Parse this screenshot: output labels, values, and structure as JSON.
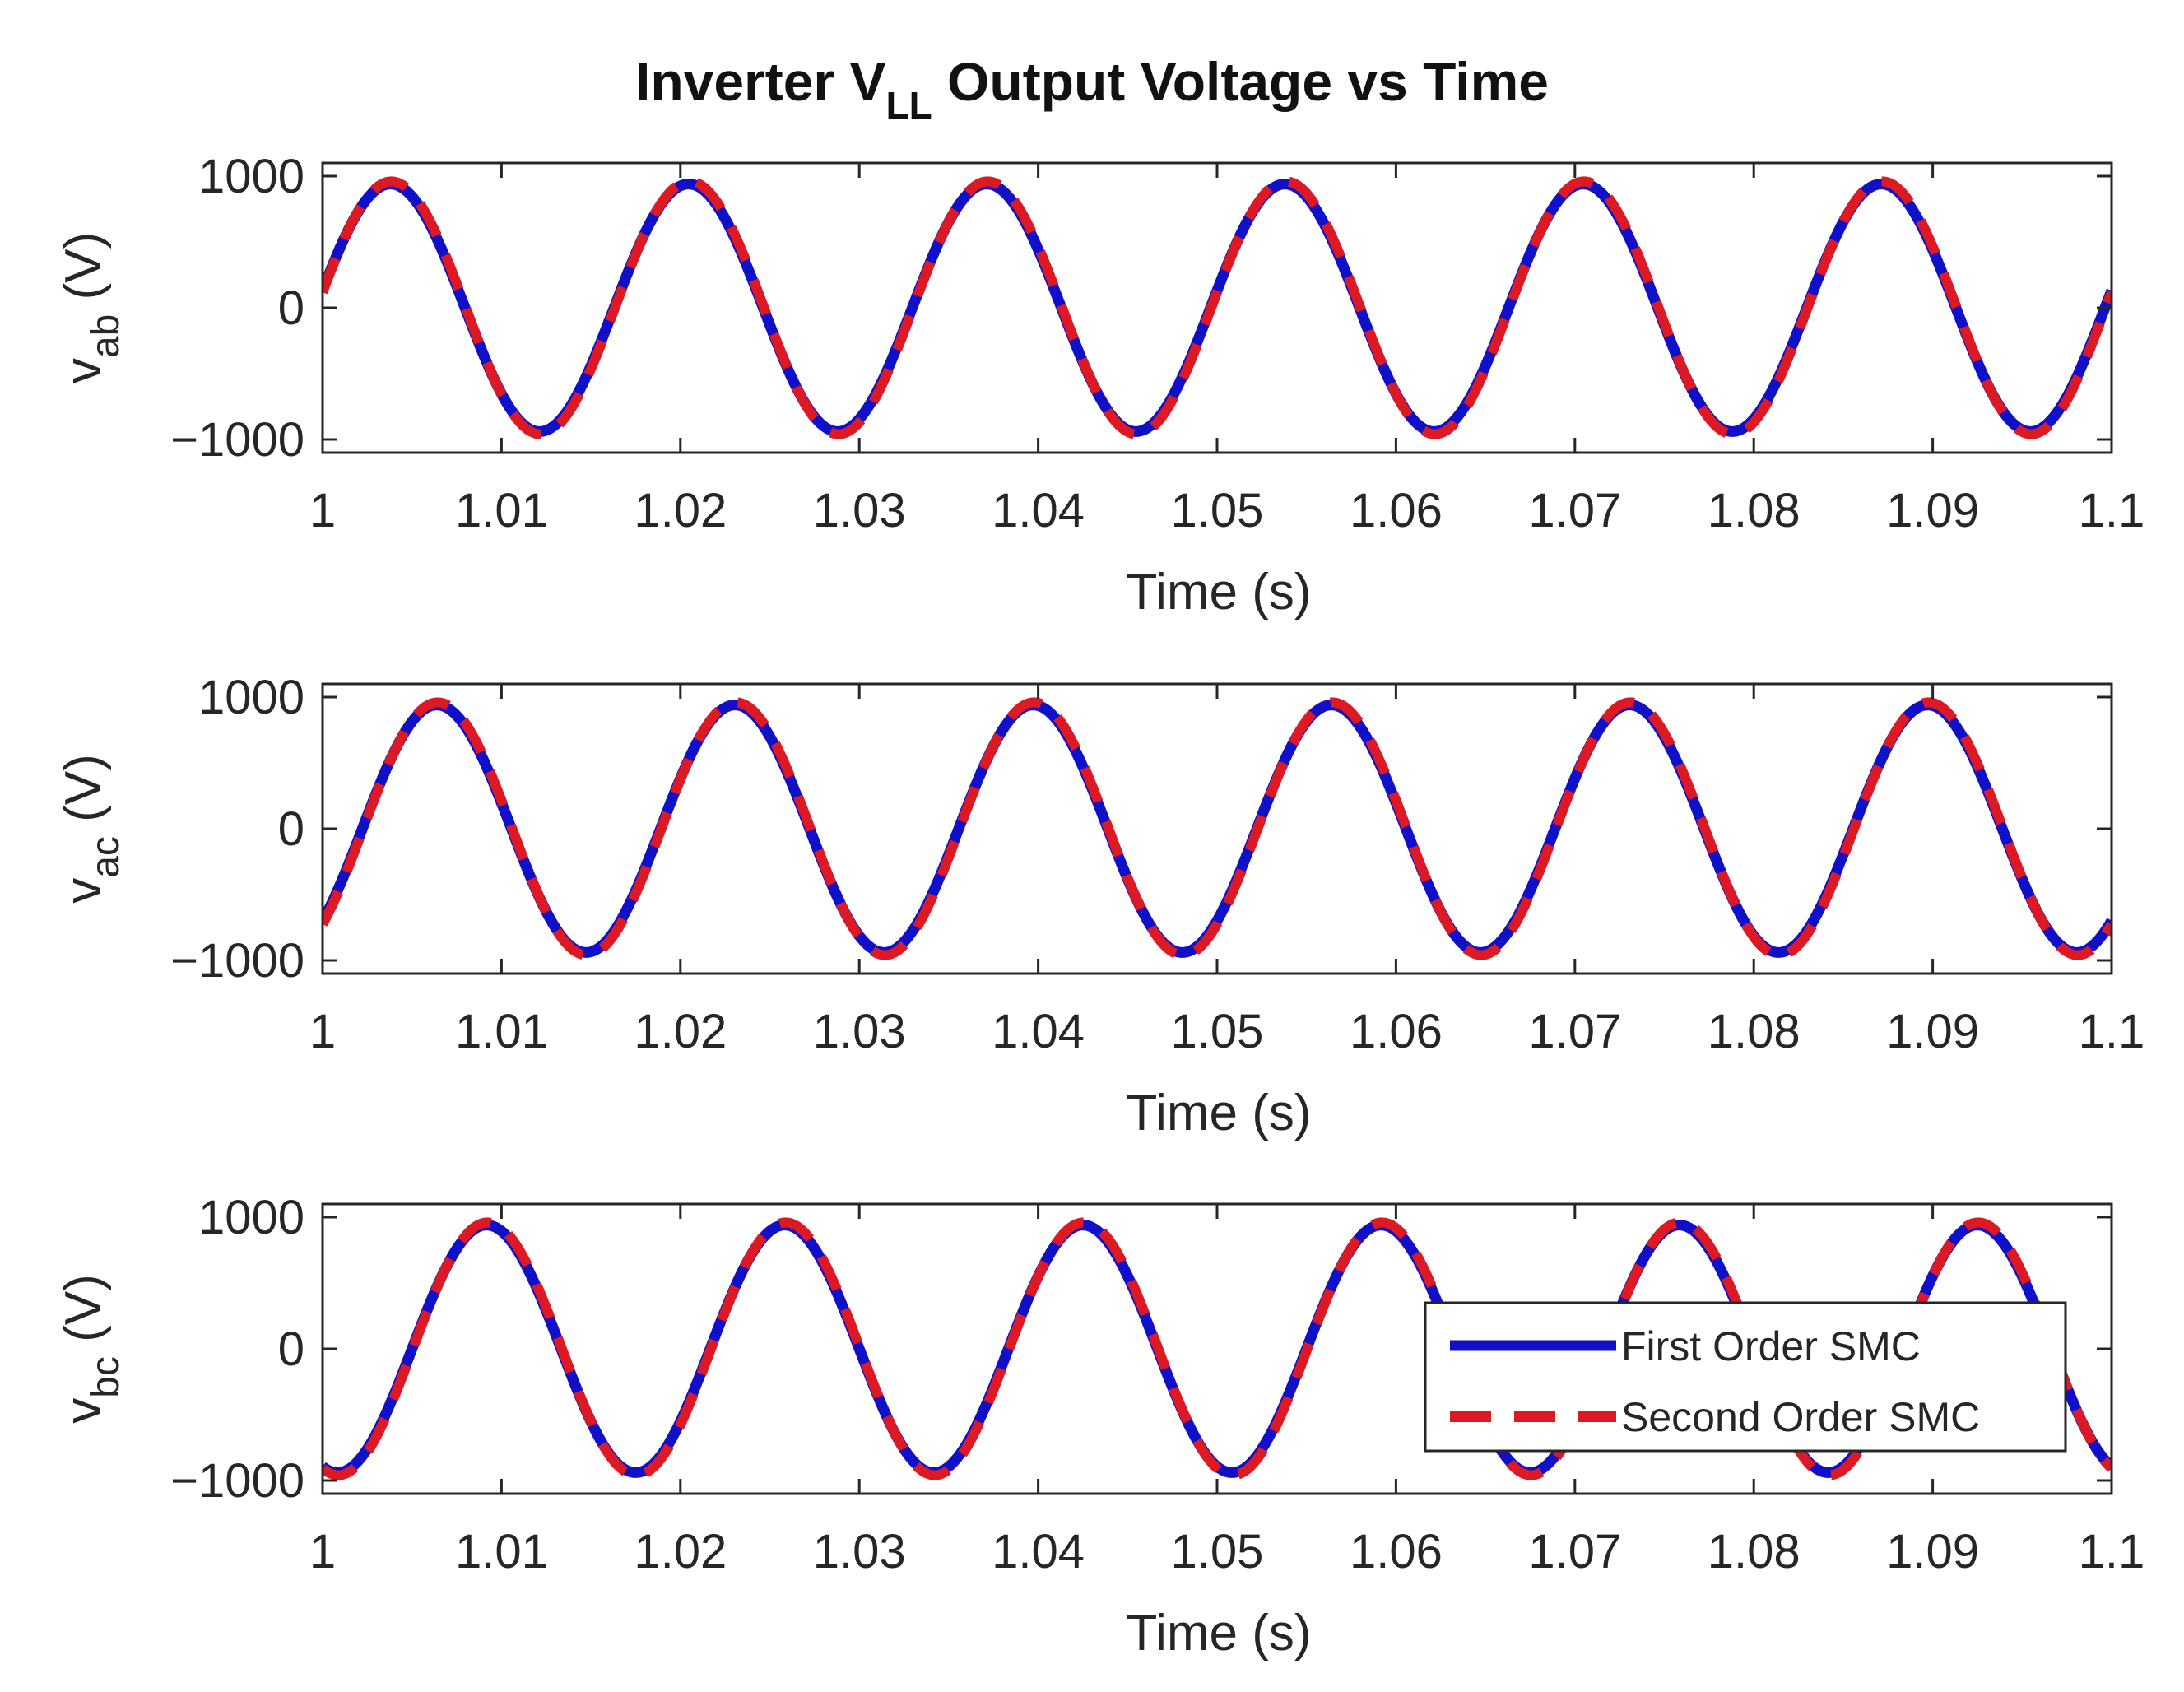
{
  "title": {
    "prefix": "Inverter V",
    "subscript": "LL",
    "suffix": " Output Voltage vs Time"
  },
  "colors": {
    "first_order": "#1010c8",
    "second_order": "#dd1a24",
    "axis": "#262626",
    "background": "#ffffff"
  },
  "legend": {
    "entries": [
      {
        "label": "First Order SMC",
        "style": "solid",
        "color": "#1010c8"
      },
      {
        "label": "Second Order SMC",
        "style": "dashed",
        "color": "#dd1a24"
      }
    ],
    "placement": "lower-right of third panel"
  },
  "chart_data": [
    {
      "type": "line",
      "ylabel_main": "v",
      "ylabel_sub": "ab",
      "ylabel_unit": " (V)",
      "xlabel": "Time (s)",
      "xlim": [
        1,
        1.1
      ],
      "ylim": [
        -1100,
        1100
      ],
      "xticks": [
        1,
        1.01,
        1.02,
        1.03,
        1.04,
        1.05,
        1.06,
        1.07,
        1.08,
        1.09,
        1.1
      ],
      "xtick_labels": [
        "1",
        "1.01",
        "1.02",
        "1.03",
        "1.04",
        "1.05",
        "1.06",
        "1.07",
        "1.08",
        "1.09",
        "1.1"
      ],
      "yticks": [
        -1000,
        0,
        1000
      ],
      "ytick_labels": [
        "−1000",
        "0",
        "1000"
      ],
      "series": [
        {
          "name": "First Order SMC",
          "style": "solid",
          "amplitude": 940,
          "frequency_hz": 60,
          "phase_deg": 8
        },
        {
          "name": "Second Order SMC",
          "style": "dashed",
          "amplitude": 960,
          "frequency_hz": 60,
          "phase_deg": 7
        }
      ]
    },
    {
      "type": "line",
      "ylabel_main": "v",
      "ylabel_sub": "ac",
      "ylabel_unit": " (V)",
      "xlabel": "Time (s)",
      "xlim": [
        1,
        1.1
      ],
      "ylim": [
        -1100,
        1100
      ],
      "xticks": [
        1,
        1.01,
        1.02,
        1.03,
        1.04,
        1.05,
        1.06,
        1.07,
        1.08,
        1.09,
        1.1
      ],
      "xtick_labels": [
        "1",
        "1.01",
        "1.02",
        "1.03",
        "1.04",
        "1.05",
        "1.06",
        "1.07",
        "1.08",
        "1.09",
        "1.1"
      ],
      "yticks": [
        -1000,
        0,
        1000
      ],
      "ytick_labels": [
        "−1000",
        "0",
        "1000"
      ],
      "series": [
        {
          "name": "First Order SMC",
          "style": "solid",
          "amplitude": 940,
          "frequency_hz": 60,
          "phase_deg": -48
        },
        {
          "name": "Second Order SMC",
          "style": "dashed",
          "amplitude": 960,
          "frequency_hz": 60,
          "phase_deg": -49
        }
      ]
    },
    {
      "type": "line",
      "ylabel_main": "v",
      "ylabel_sub": "bc",
      "ylabel_unit": " (V)",
      "xlabel": "Time (s)",
      "xlim": [
        1,
        1.1
      ],
      "ylim": [
        -1100,
        1100
      ],
      "xticks": [
        1,
        1.01,
        1.02,
        1.03,
        1.04,
        1.05,
        1.06,
        1.07,
        1.08,
        1.09,
        1.1
      ],
      "xtick_labels": [
        "1",
        "1.01",
        "1.02",
        "1.03",
        "1.04",
        "1.05",
        "1.06",
        "1.07",
        "1.08",
        "1.09",
        "1.1"
      ],
      "yticks": [
        -1000,
        0,
        1000
      ],
      "ytick_labels": [
        "−1000",
        "0",
        "1000"
      ],
      "series": [
        {
          "name": "First Order SMC",
          "style": "solid",
          "amplitude": 940,
          "frequency_hz": 60,
          "phase_deg": -108
        },
        {
          "name": "Second Order SMC",
          "style": "dashed",
          "amplitude": 960,
          "frequency_hz": 60,
          "phase_deg": -109
        }
      ]
    }
  ]
}
